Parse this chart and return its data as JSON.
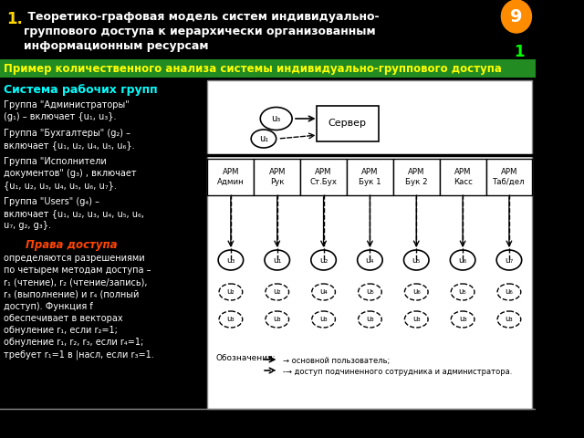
{
  "bg_color": "#000000",
  "title_number": "1.",
  "title_text": " Теоретико-графовая модель систем индивидуально-\nгруппового доступа к иерархически организованным\nинформационным ресурсам",
  "slide_number": "9",
  "slide_subnumber": "1",
  "subtitle": "Пример количественного анализа системы индивидуально-группового доступа",
  "section": "Система рабочих групп",
  "left_text": [
    "Группа \"Администраторы\"\n(g₁) – включает {u₁, u₃}.",
    "Группа \"Бухгалтеры\" (g₂) –\nвключает {u₁, u₂, u₄, u₅, u₆}.",
    "Группа \"Исполнители\nдокументов\" (g₃) , включает\n{u₁, u₂, u₃, u₄, u₅, u₆, u₇}.",
    "Группа \"Users\" (g₄) –\nвключает {u₁, u₂, u₃, u₄, u₅, u₆,\nu₇, g₂, g₃}."
  ],
  "rights_header": "Права доступа",
  "rights_text": "определяются разрешениями\nпо четырем методам доступа –\nr₁ (чтение), r₂ (чтение/запись),\nr₃ (выполнение) и r₄ (полный\nдоступ). Функция f\nобеспечивает в векторах\nобнуление r₁, если r₂=1;\nобнуление r₁, r₂, r₃, если r₄=1;\nтребует r₁=1 в |насл, если r₃=1.",
  "diagram_bg": "#ffffff",
  "arm_labels": [
    "АРМ\nАдмин",
    "АРМ\nРук",
    "АРМ\nСт.Бух",
    "АРМ\nБук 1",
    "АРМ\nБук 2",
    "АРМ\nКасс",
    "АРМ\nТаб/дел"
  ],
  "user_nodes_row1": [
    "u₃",
    "u₁",
    "u₂",
    "u₄",
    "u₅",
    "u₆",
    "u₇"
  ],
  "user_nodes_row2": [
    "u₂",
    "u₂",
    "u₄",
    "u₅",
    "u₆",
    "u₅",
    "u₆"
  ],
  "user_nodes_row3": [
    "u₃",
    "u₃",
    "u₃",
    "u₃",
    "u₃",
    "u₃",
    "u₃"
  ],
  "server_label": "Сервер",
  "legend_solid": "→ основной пользователь;",
  "legend_dashed": "-→ доступ подчиненного сотрудника и администратора."
}
